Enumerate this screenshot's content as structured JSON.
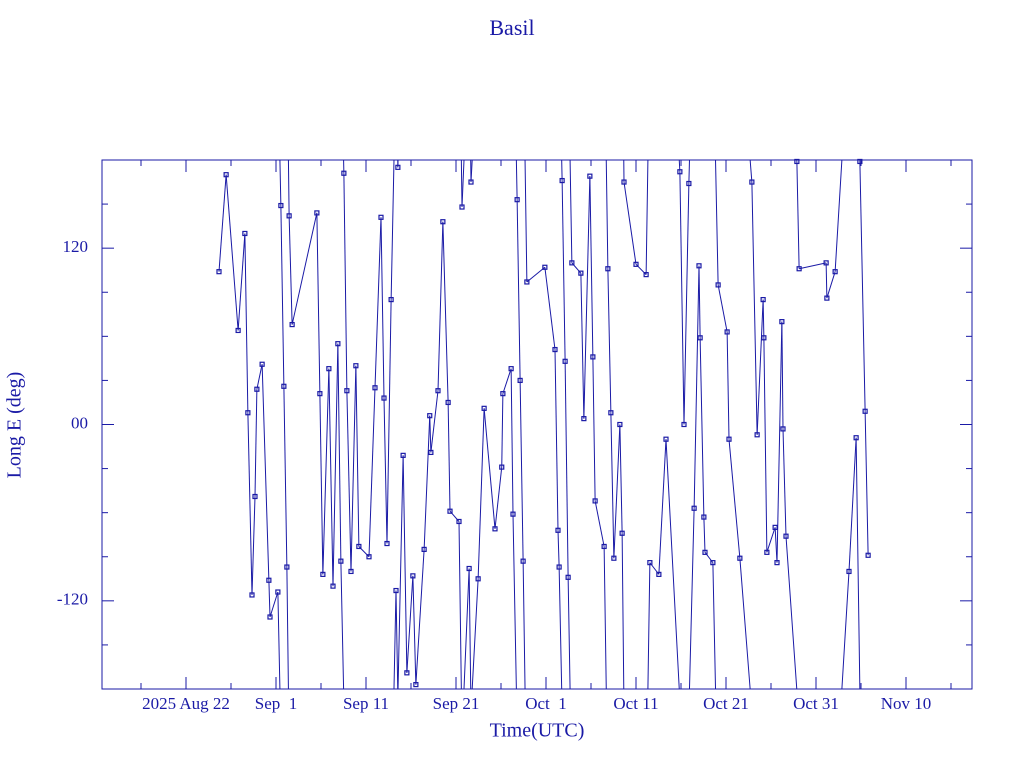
{
  "chart_data": {
    "type": "line",
    "title": "Basil",
    "x_label": "Time(UTC)",
    "y_label": "Long E (deg)",
    "color": "#1a1aa6",
    "xlim": [
      "2025-08-12T16:00",
      "2025-11-17T08:00"
    ],
    "xticks": [
      {
        "value": "2025-08-22T00:00",
        "label": "2025 Aug 22"
      },
      {
        "value": "2025-09-01T00:00",
        "label": "Sep  1"
      },
      {
        "value": "2025-09-11T00:00",
        "label": "Sep 11"
      },
      {
        "value": "2025-09-21T00:00",
        "label": "Sep 21"
      },
      {
        "value": "2025-10-01T00:00",
        "label": "Oct  1"
      },
      {
        "value": "2025-10-11T00:00",
        "label": "Oct 11"
      },
      {
        "value": "2025-10-21T00:00",
        "label": "Oct 21"
      },
      {
        "value": "2025-10-31T00:00",
        "label": "Oct 31"
      },
      {
        "value": "2025-11-10T00:00",
        "label": "Nov 10"
      }
    ],
    "xminorticks": [
      "2025-08-17T00:00",
      "2025-08-27T00:00",
      "2025-09-06T00:00",
      "2025-09-16T00:00",
      "2025-09-26T00:00",
      "2025-10-06T00:00",
      "2025-10-16T00:00",
      "2025-10-26T00:00",
      "2025-11-05T00:00",
      "2025-11-15T00:00"
    ],
    "ylim": [
      -180,
      180
    ],
    "yticks": [
      -120,
      {
        "value": 0,
        "label": "00"
      },
      120
    ],
    "yminorticks": [
      -150,
      -90,
      -60,
      -30,
      30,
      60,
      90,
      150
    ],
    "x": [
      "2025-08-25T16:00",
      "2025-08-26T11:00",
      "2025-08-27T19:00",
      "2025-08-28T13:00",
      "2025-08-28T21:00",
      "2025-08-29T08:00",
      "2025-08-29T16:00",
      "2025-08-29T21:00",
      "2025-08-30T11:00",
      "2025-08-31T05:00",
      "2025-08-31T08:00",
      "2025-09-01T05:00",
      "2025-09-01T13:00",
      "2025-09-01T21:00",
      "2025-09-02T05:00",
      "2025-09-02T11:00",
      "2025-09-02T19:00",
      "2025-09-05T13:00",
      "2025-09-05T21:00",
      "2025-09-06T05:00",
      "2025-09-06T21:00",
      "2025-09-07T08:00",
      "2025-09-07T21:00",
      "2025-09-08T05:00",
      "2025-09-08T13:00",
      "2025-09-08T21:00",
      "2025-09-09T08:00",
      "2025-09-09T21:00",
      "2025-09-10T05:00",
      "2025-09-11T08:00",
      "2025-09-12T00:00",
      "2025-09-12T16:00",
      "2025-09-13T00:00",
      "2025-09-13T08:00",
      "2025-09-13T19:00",
      "2025-09-14T08:00",
      "2025-09-14T13:00",
      "2025-09-15T03:00",
      "2025-09-15T13:00",
      "2025-09-16T05:00",
      "2025-09-16T13:00",
      "2025-09-17T11:00",
      "2025-09-18T02:00",
      "2025-09-18T05:00",
      "2025-09-19T00:00",
      "2025-09-19T13:00",
      "2025-09-20T03:00",
      "2025-09-20T08:00",
      "2025-09-21T08:00",
      "2025-09-21T16:00",
      "2025-09-22T11:00",
      "2025-09-22T16:00",
      "2025-09-23T11:00",
      "2025-09-24T03:00",
      "2025-09-25T08:00",
      "2025-09-26T02:00",
      "2025-09-26T05:00",
      "2025-09-27T03:00",
      "2025-09-27T08:00",
      "2025-09-27T19:00",
      "2025-09-28T03:00",
      "2025-09-28T11:00",
      "2025-09-28T21:00",
      "2025-09-30T21:00",
      "2025-10-02T00:00",
      "2025-10-02T08:00",
      "2025-10-02T11:00",
      "2025-10-02T19:00",
      "2025-10-03T03:00",
      "2025-10-03T11:00",
      "2025-10-03T21:00",
      "2025-10-04T21:00",
      "2025-10-05T05:00",
      "2025-10-05T21:00",
      "2025-10-06T05:00",
      "2025-10-06T11:00",
      "2025-10-07T11:00",
      "2025-10-07T21:00",
      "2025-10-08T05:00",
      "2025-10-08T13:00",
      "2025-10-09T05:00",
      "2025-10-09T11:00",
      "2025-10-09T16:00",
      "2025-10-11T00:00",
      "2025-10-12T03:00",
      "2025-10-12T13:00",
      "2025-10-13T13:00",
      "2025-10-14T08:00",
      "2025-10-15T21:00",
      "2025-10-16T08:00",
      "2025-10-16T21:00",
      "2025-10-17T11:00",
      "2025-10-18T00:00",
      "2025-10-18T03:00",
      "2025-10-18T13:00",
      "2025-10-18T16:00",
      "2025-10-19T13:00",
      "2025-10-20T03:00",
      "2025-10-21T03:00",
      "2025-10-21T08:00",
      "2025-10-22T13:00",
      "2025-10-23T21:00",
      "2025-10-24T11:00",
      "2025-10-25T03:00",
      "2025-10-25T05:00",
      "2025-10-25T13:00",
      "2025-10-26T11:00",
      "2025-10-26T16:00",
      "2025-10-27T05:00",
      "2025-10-27T08:00",
      "2025-10-27T16:00",
      "2025-10-28T21:00",
      "2025-10-29T03:00",
      "2025-11-01T03:00",
      "2025-11-01T05:00",
      "2025-11-02T03:00",
      "2025-11-03T16:00",
      "2025-11-04T11:00",
      "2025-11-04T21:00",
      "2025-11-05T11:00",
      "2025-11-05T19:00"
    ],
    "values": [
      104,
      170,
      64,
      130,
      8,
      -116,
      -49,
      24,
      41,
      -106,
      -131,
      -114,
      149,
      26,
      -97,
      142,
      68,
      144,
      21,
      -102,
      38,
      -110,
      55,
      -93,
      171,
      23,
      -100,
      40,
      -83,
      -90,
      25,
      141,
      18,
      -81,
      85,
      -113,
      175,
      -21,
      -169,
      -103,
      -177,
      -85,
      6,
      -19,
      23,
      138,
      15,
      -59,
      -66,
      148,
      -98,
      165,
      -105,
      11,
      -71,
      -29,
      21,
      38,
      -61,
      153,
      30,
      -93,
      97,
      107,
      51,
      -72,
      -97,
      166,
      43,
      -104,
      110,
      103,
      4,
      169,
      46,
      -52,
      -83,
      106,
      8,
      -91,
      0,
      -74,
      165,
      109,
      102,
      -94,
      -102,
      -10,
      172,
      0,
      164,
      -57,
      108,
      59,
      -63,
      -87,
      -94,
      95,
      63,
      -10,
      -91,
      165,
      -7,
      85,
      59,
      -87,
      -70,
      -94,
      70,
      -3,
      -76,
      179,
      106,
      110,
      86,
      104,
      -100,
      -9,
      179,
      9,
      -89
    ]
  }
}
